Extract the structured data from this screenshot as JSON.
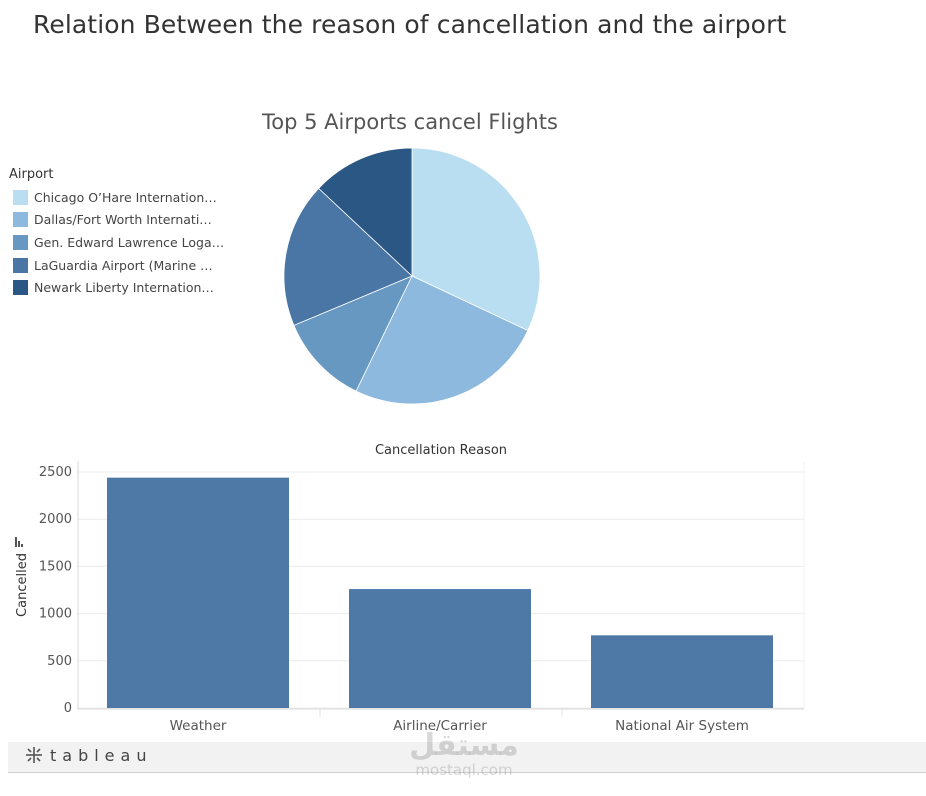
{
  "dashboard": {
    "title": "Relation Between the reason of cancellation and the airport"
  },
  "pie": {
    "title": "Top 5 Airports cancel Flights",
    "legend_title": "Airport",
    "legend_items": [
      {
        "label": "Chicago O’Hare Internation…",
        "color": "#b9ddf1"
      },
      {
        "label": "Dallas/Fort Worth Internati…",
        "color": "#8cb9dd"
      },
      {
        "label": "Gen. Edward Lawrence Loga…",
        "color": "#6798c1"
      },
      {
        "label": "LaGuardia Airport (Marine …",
        "color": "#4a76a6"
      },
      {
        "label": "Newark Liberty Internation…",
        "color": "#2a5783"
      }
    ]
  },
  "footer": {
    "brand": "tableau"
  },
  "watermark": {
    "arabic": "مستقل",
    "latin": "mostaql.com"
  },
  "chart_data": [
    {
      "type": "pie",
      "title": "Top 5 Airports cancel Flights",
      "legend_title": "Airport",
      "legend_position": "left",
      "categories": [
        "Chicago O’Hare Internation…",
        "Dallas/Fort Worth Internati…",
        "Gen. Edward Lawrence Loga…",
        "LaGuardia Airport (Marine …",
        "Newark Liberty Internation…"
      ],
      "values": [
        32.0,
        25.2,
        11.5,
        18.3,
        13.0
      ],
      "colors": [
        "#b9ddf1",
        "#8cb9dd",
        "#6798c1",
        "#4a76a6",
        "#2a5783"
      ]
    },
    {
      "type": "bar",
      "title": "Cancellation Reason",
      "categories": [
        "Weather",
        "Airline/Carrier",
        "National Air System"
      ],
      "values": [
        2440,
        1260,
        770
      ],
      "xlabel": "",
      "ylabel": "Cancelled",
      "ylim": [
        0,
        2500
      ],
      "yticks": [
        0,
        500,
        1000,
        1500,
        2000,
        2500
      ],
      "grid": true,
      "bar_color": "#4e79a7"
    }
  ]
}
